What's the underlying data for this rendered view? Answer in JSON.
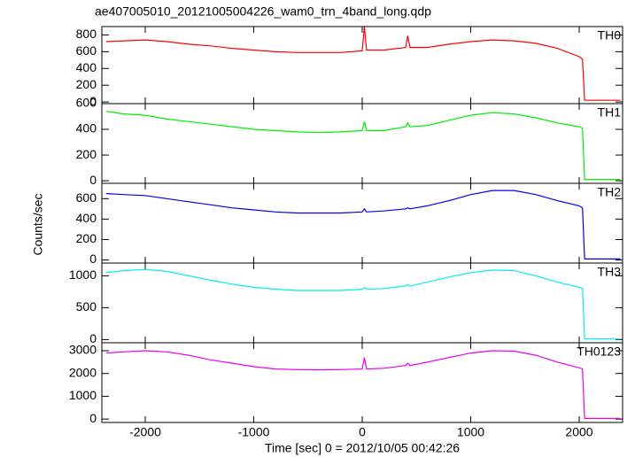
{
  "chart_data": [
    {
      "type": "line",
      "title": "ae407005010_20121005004226_wam0_trn_4band_long.qdp",
      "x": [
        -2360,
        -2200,
        -2000,
        -1800,
        -1600,
        -1400,
        -1200,
        -1000,
        -800,
        -600,
        -400,
        -200,
        0,
        20,
        40,
        200,
        400,
        420,
        440,
        600,
        800,
        1000,
        1200,
        1400,
        1600,
        1800,
        2000,
        2030,
        2050,
        2380
      ],
      "series": [
        {
          "name": "TH0",
          "color": "#ff0000",
          "values": [
            720,
            730,
            740,
            720,
            690,
            670,
            640,
            620,
            600,
            590,
            590,
            590,
            610,
            900,
            620,
            620,
            650,
            790,
            650,
            650,
            690,
            720,
            740,
            730,
            700,
            640,
            540,
            510,
            20,
            20
          ]
        }
      ],
      "xlim": [
        -2400,
        2400
      ],
      "xticks": [
        -2000,
        -1000,
        0,
        1000,
        2000
      ],
      "ylim": [
        -20,
        900
      ],
      "yticks": [
        0,
        200,
        400,
        600,
        800
      ]
    },
    {
      "type": "line",
      "x": [
        -2360,
        -2200,
        -2000,
        -1800,
        -1600,
        -1400,
        -1200,
        -1000,
        -800,
        -600,
        -400,
        -200,
        0,
        20,
        40,
        200,
        400,
        420,
        440,
        600,
        800,
        1000,
        1200,
        1400,
        1600,
        1800,
        2000,
        2030,
        2050,
        2380
      ],
      "series": [
        {
          "name": "TH1",
          "color": "#00ee00",
          "values": [
            540,
            520,
            510,
            480,
            460,
            440,
            420,
            400,
            390,
            380,
            375,
            380,
            390,
            460,
            390,
            390,
            420,
            450,
            420,
            430,
            470,
            510,
            530,
            520,
            490,
            450,
            420,
            410,
            10,
            10
          ]
        }
      ],
      "xlim": [
        -2400,
        2400
      ],
      "xticks": [
        -2000,
        -1000,
        0,
        1000,
        2000
      ],
      "ylim": [
        -20,
        600
      ],
      "yticks": [
        0,
        200,
        400,
        600
      ]
    },
    {
      "type": "line",
      "ylabel": "Counts/sec",
      "x": [
        -2360,
        -2200,
        -2000,
        -1800,
        -1600,
        -1400,
        -1200,
        -1000,
        -800,
        -600,
        -400,
        -200,
        0,
        20,
        40,
        200,
        400,
        420,
        440,
        600,
        800,
        1000,
        1200,
        1400,
        1600,
        1800,
        2000,
        2030,
        2050,
        2380
      ],
      "series": [
        {
          "name": "TH2",
          "color": "#0000ee",
          "values": [
            650,
            640,
            630,
            600,
            570,
            540,
            510,
            490,
            470,
            460,
            460,
            460,
            470,
            500,
            470,
            480,
            500,
            510,
            500,
            530,
            580,
            640,
            680,
            680,
            640,
            580,
            530,
            510,
            10,
            10
          ]
        }
      ],
      "xlim": [
        -2400,
        2400
      ],
      "xticks": [
        -2000,
        -1000,
        0,
        1000,
        2000
      ],
      "ylim": [
        -30,
        750
      ],
      "yticks": [
        0,
        200,
        400,
        600
      ]
    },
    {
      "type": "line",
      "x": [
        -2360,
        -2200,
        -2000,
        -1800,
        -1600,
        -1400,
        -1200,
        -1000,
        -800,
        -600,
        -400,
        -200,
        0,
        20,
        40,
        200,
        400,
        420,
        440,
        600,
        800,
        1000,
        1200,
        1400,
        1600,
        1800,
        2000,
        2030,
        2050,
        2380
      ],
      "series": [
        {
          "name": "TH3",
          "color": "#00eeee",
          "values": [
            1050,
            1080,
            1100,
            1070,
            1000,
            930,
            870,
            820,
            790,
            770,
            770,
            770,
            790,
            820,
            790,
            800,
            840,
            860,
            840,
            900,
            980,
            1050,
            1090,
            1080,
            1000,
            900,
            820,
            800,
            10,
            10
          ]
        }
      ],
      "xlim": [
        -2400,
        2400
      ],
      "xticks": [
        -2000,
        -1000,
        0,
        1000,
        2000
      ],
      "ylim": [
        -50,
        1200
      ],
      "yticks": [
        0,
        500,
        1000
      ]
    },
    {
      "type": "line",
      "xlabel": "Time [sec] 0 = 2012/10/05 00:42:26",
      "x": [
        -2360,
        -2200,
        -2000,
        -1800,
        -1600,
        -1400,
        -1200,
        -1000,
        -800,
        -600,
        -400,
        -200,
        0,
        20,
        40,
        200,
        400,
        420,
        440,
        600,
        800,
        1000,
        1200,
        1400,
        1600,
        1800,
        2000,
        2030,
        2050,
        2380
      ],
      "series": [
        {
          "name": "TH0123",
          "color": "#ee00ee",
          "values": [
            2900,
            2950,
            3000,
            2950,
            2800,
            2600,
            2450,
            2300,
            2200,
            2170,
            2160,
            2170,
            2200,
            2700,
            2200,
            2230,
            2350,
            2450,
            2350,
            2500,
            2700,
            2900,
            3000,
            2980,
            2800,
            2500,
            2250,
            2200,
            30,
            30
          ]
        }
      ],
      "xlim": [
        -2400,
        2400
      ],
      "xticks": [
        -2000,
        -1000,
        0,
        1000,
        2000
      ],
      "ylim": [
        -150,
        3350
      ],
      "yticks": [
        0,
        1000,
        2000,
        3000
      ]
    }
  ]
}
